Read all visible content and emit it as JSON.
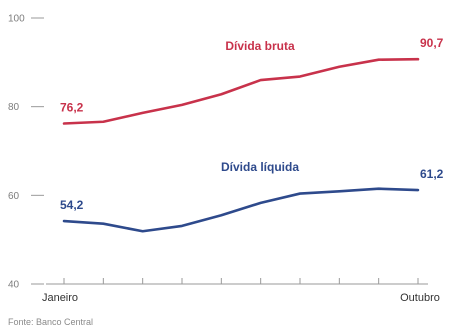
{
  "chart_data": {
    "type": "line",
    "x": [
      "Janeiro",
      "",
      "",
      "",
      "",
      "",
      "",
      "",
      "",
      "Outubro"
    ],
    "xlabels_shown": [
      "Janeiro",
      "Outubro"
    ],
    "ylim": [
      40,
      100
    ],
    "yticks": [
      40,
      60,
      80,
      100
    ],
    "grid": false,
    "series": [
      {
        "name": "Dívida bruta",
        "color": "#c8324b",
        "values": [
          76.2,
          76.6,
          78.6,
          80.4,
          82.8,
          86.0,
          86.8,
          89.0,
          90.6,
          90.7
        ],
        "first_label": "76,2",
        "last_label": "90,7"
      },
      {
        "name": "Dívida líquida",
        "color": "#2e4a8c",
        "values": [
          54.2,
          53.6,
          51.9,
          53.1,
          55.5,
          58.3,
          60.4,
          60.9,
          61.5,
          61.2
        ],
        "first_label": "54,2",
        "last_label": "61,2"
      }
    ]
  },
  "source": "Fonte: Banco Central"
}
